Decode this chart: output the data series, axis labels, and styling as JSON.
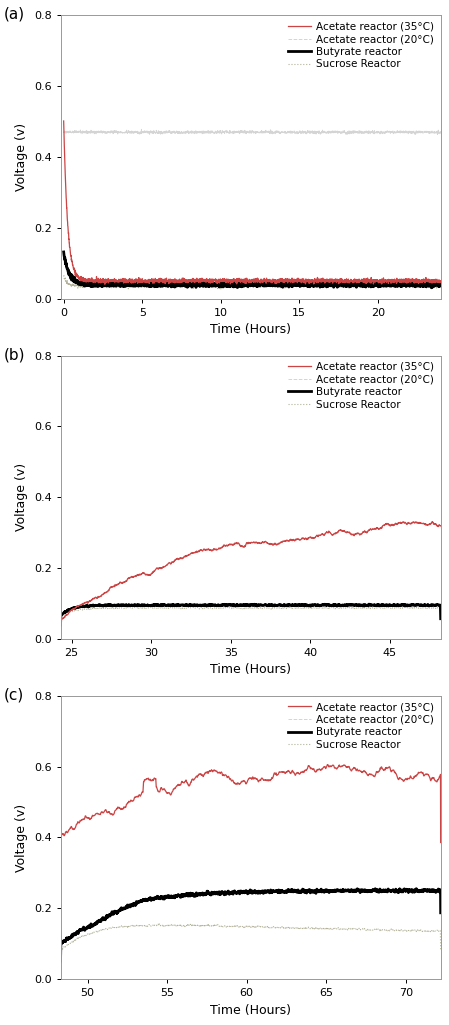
{
  "panels": [
    {
      "label": "(a)",
      "xlim": [
        -0.2,
        24
      ],
      "xticks": [
        0,
        5,
        10,
        15,
        20
      ],
      "ylim": [
        0.0,
        0.8
      ],
      "yticks": [
        0.0,
        0.2,
        0.4,
        0.6,
        0.8
      ]
    },
    {
      "label": "(b)",
      "xlim": [
        24.3,
        48.2
      ],
      "xticks": [
        25,
        30,
        35,
        40,
        45
      ],
      "ylim": [
        0.0,
        0.8
      ],
      "yticks": [
        0.0,
        0.2,
        0.4,
        0.6,
        0.8
      ]
    },
    {
      "label": "(c)",
      "xlim": [
        48.3,
        72.2
      ],
      "xticks": [
        50,
        55,
        60,
        65,
        70
      ],
      "ylim": [
        0.0,
        0.8
      ],
      "yticks": [
        0.0,
        0.2,
        0.4,
        0.6,
        0.8
      ]
    }
  ],
  "legend_entries": [
    {
      "label": "Acetate reactor (35°C)",
      "color": "#cc4444",
      "lw": 0.9,
      "ls": "-"
    },
    {
      "label": "Acetate reactor (20°C)",
      "color": "#aaaaaa",
      "lw": 0.7,
      "ls": "-"
    },
    {
      "label": "Butyrate reactor",
      "color": "#000000",
      "lw": 2.0,
      "ls": "-"
    },
    {
      "label": "Sucrose Reactor",
      "color": "#999977",
      "lw": 0.8,
      "ls": ":"
    }
  ],
  "ylabel": "Voltage (v)",
  "xlabel": "Time (Hours)"
}
